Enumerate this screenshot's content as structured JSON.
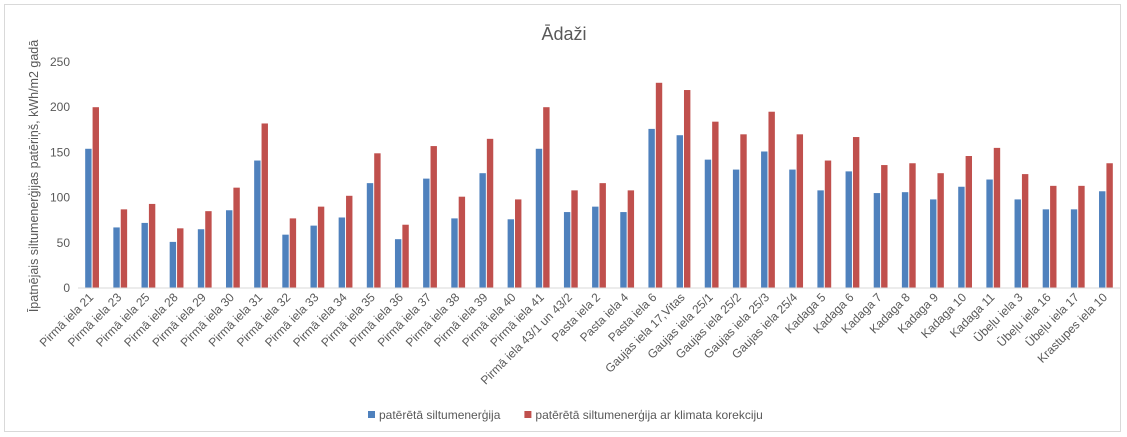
{
  "chart_data": {
    "type": "bar",
    "title": "Ādaži",
    "xlabel": "",
    "ylabel": "Īpatnējais siltumenerģijas patēriņš, kWh/m2 gadā",
    "ylim": [
      0,
      250
    ],
    "yticks": [
      0,
      50,
      100,
      150,
      200,
      250
    ],
    "grid": false,
    "legend_position": "bottom",
    "categories": [
      "Pirmā iela 21",
      "Pirmā iela 23",
      "Pirmā iela 25",
      "Pirmā iela 28",
      "Pirmā iela 29",
      "Pirmā iela 30",
      "Pirmā iela 31",
      "Pirmā iela 32",
      "Pirmā iela 33",
      "Pirmā iela 34",
      "Pirmā iela 35",
      "Pirmā iela 36",
      "Pirmā iela 37",
      "Pirmā iela 38",
      "Pirmā iela 39",
      "Pirmā iela 40",
      "Pirmā iela 41",
      "Pirmā iela 43/1 un 43/2",
      "Pasta iela 2",
      "Pasta iela 4",
      "Pasta iela 6",
      "Gaujas iela 17,Vitas",
      "Gaujas iela 25/1",
      "Gaujas iela 25/2",
      "Gaujas iela 25/3",
      "Gaujas iela 25/4",
      "Kadaga 5",
      "Kadaga 6",
      "Kadaga 7",
      "Kadaga 8",
      "Kadaga 9",
      "Kadaga 10",
      "Kadaga 11",
      "Ūbeļu iela 3",
      "Ūbeļu iela 16",
      "Ūbeļu iela 17",
      "Krastupes iela 10"
    ],
    "series": [
      {
        "name": "patērētā siltumenerģija",
        "color": "#4f81bd",
        "values": [
          154,
          67,
          72,
          51,
          65,
          86,
          141,
          59,
          69,
          78,
          116,
          54,
          121,
          77,
          127,
          76,
          154,
          84,
          90,
          84,
          176,
          169,
          142,
          131,
          151,
          131,
          108,
          129,
          105,
          106,
          98,
          112,
          120,
          98,
          87,
          87,
          107
        ]
      },
      {
        "name": "patērētā siltumenerģija ar klimata korekciju",
        "color": "#c0504d",
        "values": [
          200,
          87,
          93,
          66,
          85,
          111,
          182,
          77,
          90,
          102,
          149,
          70,
          157,
          101,
          165,
          98,
          200,
          108,
          116,
          108,
          227,
          219,
          184,
          170,
          195,
          170,
          141,
          167,
          136,
          138,
          127,
          146,
          155,
          126,
          113,
          113,
          138
        ]
      }
    ]
  }
}
